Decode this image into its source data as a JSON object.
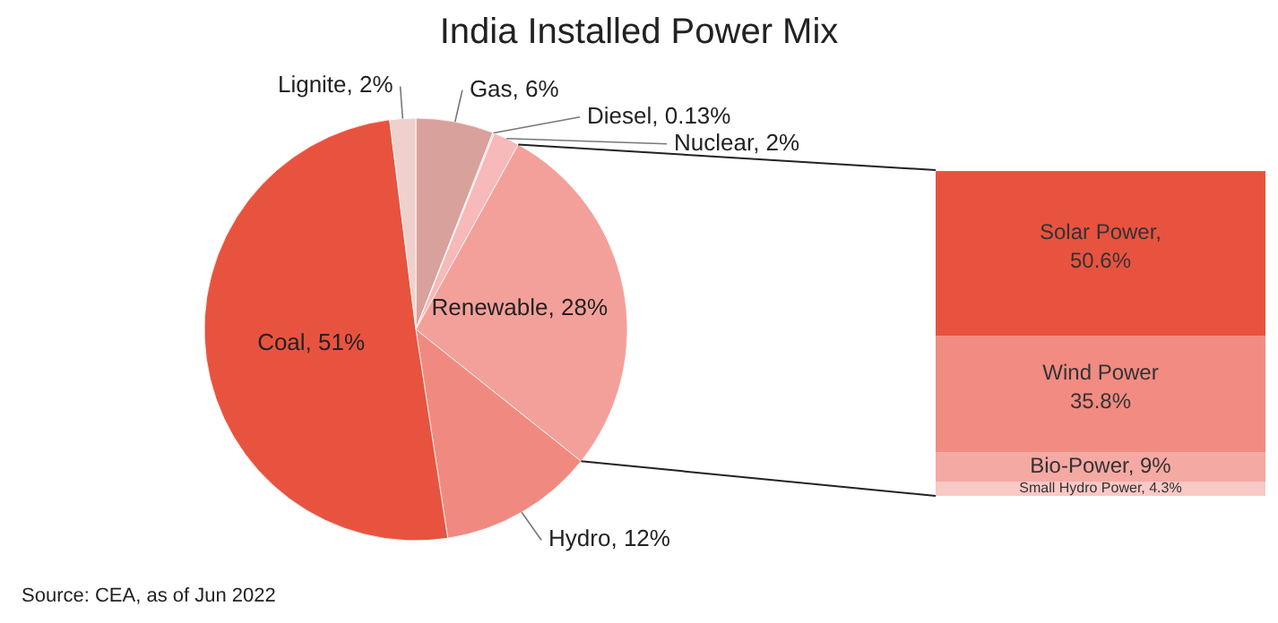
{
  "chart_data": [
    {
      "type": "pie",
      "title": "India Installed Power Mix",
      "categories": [
        "Gas",
        "Diesel",
        "Nuclear",
        "Renewable",
        "Hydro",
        "Coal",
        "Lignite"
      ],
      "values": [
        6,
        0.13,
        2,
        28,
        12,
        51,
        2
      ],
      "value_labels": [
        "6%",
        "0.13%",
        "2%",
        "28%",
        "12%",
        "51%",
        "2%"
      ],
      "colors": [
        "#d9a19b",
        "#f6cfcf",
        "#f7b9b9",
        "#f4a09a",
        "#f08a80",
        "#e8533f",
        "#f0d0cc"
      ],
      "annotations": [
        "Source: CEA, as of Jun 2022"
      ]
    },
    {
      "type": "bar",
      "stacked": true,
      "ylim": [
        0,
        100
      ],
      "tick_labels": false,
      "categories": [
        null
      ],
      "series": [
        {
          "name": "Small Hydro Power,",
          "color": "#f9c9c5",
          "values": [
            4.3
          ],
          "value_labels": [
            "4.3%"
          ]
        },
        {
          "name": "Bio-Power,",
          "color": "#f5a9a3",
          "values": [
            9
          ],
          "value_labels": [
            "9%"
          ]
        },
        {
          "name": "Wind Power",
          "color": "#f28b82",
          "values": [
            35.8
          ],
          "value_labels": [
            "35.8%"
          ]
        },
        {
          "name": "Solar Power,",
          "color": "#e8533f",
          "values": [
            50.6
          ],
          "value_labels": [
            "50.6%"
          ]
        }
      ]
    }
  ]
}
